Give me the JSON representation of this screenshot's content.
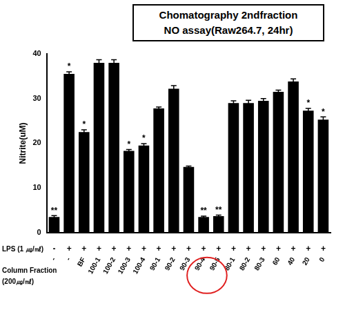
{
  "chart_data": {
    "type": "bar",
    "title": [
      "Chomatography 2ndfraction",
      "NO assay(Raw264.7, 24hr)"
    ],
    "y_label": "Nitrite(uM)",
    "categories": [
      "-",
      "-",
      "BF",
      "100-1",
      "100-2",
      "100-3",
      "100-4",
      "90-1",
      "90-2",
      "90-3",
      "90-4",
      "90-5",
      "80-1",
      "80-2",
      "80-3",
      "60",
      "40",
      "20",
      "0"
    ],
    "values": [
      3.5,
      35.5,
      22.5,
      38,
      38,
      18.3,
      19.5,
      27.8,
      32.2,
      14.7,
      3.5,
      3.7,
      29,
      29,
      29.5,
      31.5,
      33.8,
      27.3,
      25.3
    ],
    "errors": [
      0.3,
      0.5,
      0.5,
      0.7,
      0.7,
      0.3,
      0.4,
      0.3,
      0.7,
      0.2,
      0.2,
      0.2,
      0.5,
      0.6,
      0.5,
      0.4,
      0.6,
      0.5,
      0.6
    ],
    "significance": [
      "**",
      "*",
      "*",
      null,
      null,
      "*",
      "*",
      null,
      null,
      null,
      "**",
      "**",
      null,
      null,
      null,
      null,
      null,
      "*",
      "*"
    ],
    "lps_label": "LPS (1 ㎍/㎖)",
    "lps": [
      "-",
      "+",
      "+",
      "+",
      "+",
      "+",
      "+",
      "+",
      "+",
      "+",
      "+",
      "+",
      "+",
      "+",
      "+",
      "+",
      "+",
      "+",
      "+"
    ],
    "category_label": [
      "Column Fraction",
      "(200㎍/㎖)"
    ],
    "highlight": [
      "90-4",
      "90-5"
    ],
    "color": "#000000",
    "ylim": [
      0,
      40
    ],
    "yticks": [
      0,
      10,
      20,
      30,
      40
    ],
    "grid": false
  }
}
